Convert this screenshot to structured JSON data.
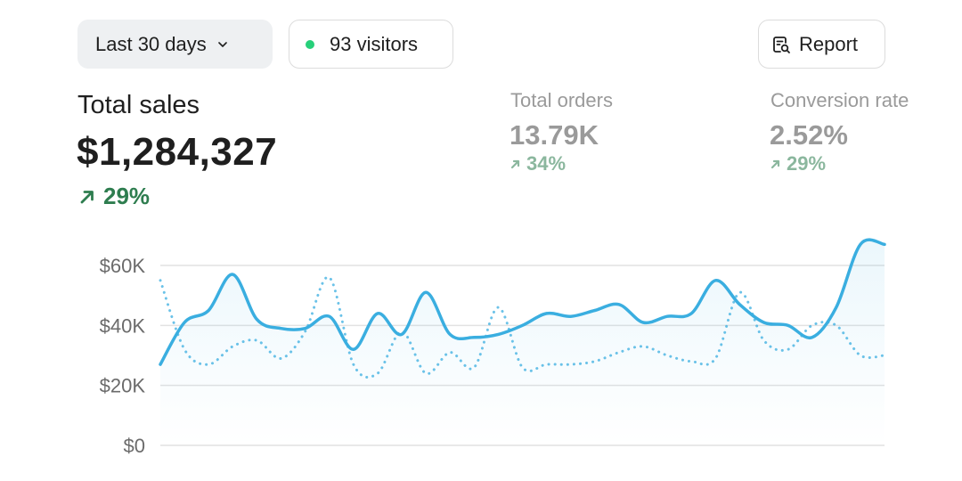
{
  "toolbar": {
    "period_label": "Last 30 days",
    "visitors_label": "93 visitors",
    "report_label": "Report"
  },
  "metrics": {
    "total_sales": {
      "label": "Total sales",
      "value": "$1,284,327",
      "change": "29%"
    },
    "total_orders": {
      "label": "Total orders",
      "value": "13.79K",
      "change": "34%"
    },
    "conversion_rate": {
      "label": "Conversion rate",
      "value": "2.52%",
      "change": "29%"
    }
  },
  "icons": {
    "period_dropdown": "chevron-down-icon",
    "visitors_status": "status-dot-icon",
    "report": "report-search-icon",
    "trend_up": "arrow-up-right-icon"
  },
  "colors": {
    "accent_line": "#3aaee0",
    "positive": "#2e7d4f",
    "live_dot": "#27d07a",
    "grid": "#e2e2e2",
    "tick_text": "#6b6b6b"
  },
  "chart_data": {
    "type": "line",
    "title": "",
    "xlabel": "",
    "ylabel": "",
    "ylim": [
      0,
      60000
    ],
    "y_ticks": [
      0,
      20000,
      40000,
      60000
    ],
    "y_tick_labels": [
      "$0",
      "$20K",
      "$40K",
      "$60K"
    ],
    "grid": true,
    "x": [
      1,
      2,
      3,
      4,
      5,
      6,
      7,
      8,
      9,
      10,
      11,
      12,
      13,
      14,
      15,
      16,
      17,
      18,
      19,
      20,
      21,
      22,
      23,
      24,
      25,
      26,
      27,
      28,
      29,
      30,
      31
    ],
    "series": [
      {
        "style": "solid",
        "values": [
          27000,
          41000,
          45000,
          57000,
          42000,
          39000,
          39000,
          43000,
          32000,
          44000,
          37000,
          51000,
          37000,
          36000,
          37000,
          40000,
          44000,
          43000,
          45000,
          47000,
          41000,
          43000,
          44000,
          55000,
          47000,
          41000,
          40000,
          36000,
          46000,
          67000,
          67000
        ]
      },
      {
        "style": "dotted",
        "values": [
          55000,
          32000,
          27000,
          33000,
          35000,
          29000,
          38000,
          56000,
          27000,
          24000,
          38000,
          24000,
          31000,
          26000,
          46000,
          26000,
          27000,
          27000,
          28000,
          31000,
          33000,
          30000,
          28000,
          29000,
          51000,
          35000,
          32000,
          40000,
          40000,
          30000,
          30000
        ]
      }
    ]
  }
}
